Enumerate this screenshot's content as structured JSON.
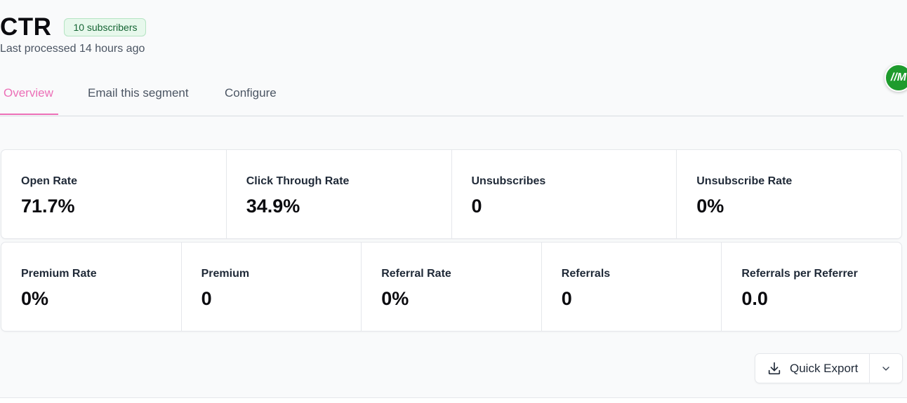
{
  "header": {
    "title": "CTR",
    "subscribers_badge": "10 subscribers",
    "last_processed": "Last processed 14 hours ago"
  },
  "tabs": [
    {
      "label": "Overview",
      "active": true
    },
    {
      "label": "Email this segment",
      "active": false
    },
    {
      "label": "Configure",
      "active": false
    }
  ],
  "avatar": {
    "initials": "//M",
    "color": "#1e9b2d"
  },
  "stats_row1": [
    {
      "label": "Open Rate",
      "value": "71.7%"
    },
    {
      "label": "Click Through Rate",
      "value": "34.9%"
    },
    {
      "label": "Unsubscribes",
      "value": "0"
    },
    {
      "label": "Unsubscribe Rate",
      "value": "0%"
    }
  ],
  "stats_row2": [
    {
      "label": "Premium Rate",
      "value": "0%"
    },
    {
      "label": "Premium",
      "value": "0"
    },
    {
      "label": "Referral Rate",
      "value": "0%"
    },
    {
      "label": "Referrals",
      "value": "0"
    },
    {
      "label": "Referrals per Referrer",
      "value": "0.0"
    }
  ],
  "export": {
    "label": "Quick Export",
    "icon": "download-icon",
    "caret_icon": "chevron-down-icon"
  },
  "colors": {
    "accent": "#ec6fb7",
    "badge_bg": "#e7f8ec",
    "badge_text": "#166534"
  }
}
